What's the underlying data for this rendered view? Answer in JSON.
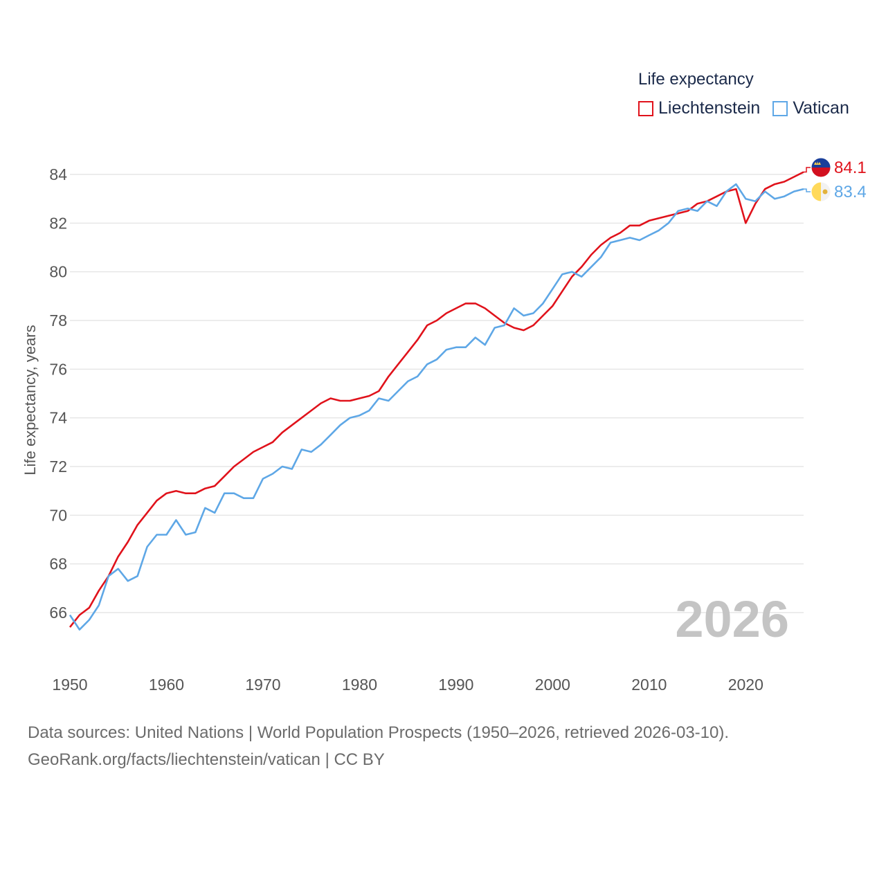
{
  "legend": {
    "title": "Life expectancy",
    "items": [
      {
        "label": "Liechtenstein",
        "color": "#e0121b"
      },
      {
        "label": "Vatican",
        "color": "#5ea7e6"
      }
    ]
  },
  "footer": {
    "line1": "Data sources: United Nations | World Population Prospects (1950–2026, retrieved 2026-03-10).",
    "line2": "GeoRank.org/facts/liechtenstein/vatican | CC BY"
  },
  "chart_data": {
    "type": "line",
    "title": "Life expectancy",
    "xlabel": "",
    "ylabel": "Life expectancy, years",
    "xlim": [
      1950,
      2026
    ],
    "ylim": [
      64.8,
      84.8
    ],
    "yticks": [
      66,
      68,
      70,
      72,
      74,
      76,
      78,
      80,
      82,
      84
    ],
    "xticks": [
      1950,
      1960,
      1970,
      1980,
      1990,
      2000,
      2010,
      2020
    ],
    "grid": true,
    "year_watermark": "2026",
    "x": [
      1950,
      1951,
      1952,
      1953,
      1954,
      1955,
      1956,
      1957,
      1958,
      1959,
      1960,
      1961,
      1962,
      1963,
      1964,
      1965,
      1966,
      1967,
      1968,
      1969,
      1970,
      1971,
      1972,
      1973,
      1974,
      1975,
      1976,
      1977,
      1978,
      1979,
      1980,
      1981,
      1982,
      1983,
      1984,
      1985,
      1986,
      1987,
      1988,
      1989,
      1990,
      1991,
      1992,
      1993,
      1994,
      1995,
      1996,
      1997,
      1998,
      1999,
      2000,
      2001,
      2002,
      2003,
      2004,
      2005,
      2006,
      2007,
      2008,
      2009,
      2010,
      2011,
      2012,
      2013,
      2014,
      2015,
      2016,
      2017,
      2018,
      2019,
      2020,
      2021,
      2022,
      2023,
      2024,
      2025,
      2026
    ],
    "series": [
      {
        "name": "Liechtenstein",
        "color": "#e0121b",
        "end_label": "84.1",
        "values": [
          65.4,
          65.9,
          66.2,
          66.9,
          67.5,
          68.3,
          68.9,
          69.6,
          70.1,
          70.6,
          70.9,
          71.0,
          70.9,
          70.9,
          71.1,
          71.2,
          71.6,
          72.0,
          72.3,
          72.6,
          72.8,
          73.0,
          73.4,
          73.7,
          74.0,
          74.3,
          74.6,
          74.8,
          74.7,
          74.7,
          74.8,
          74.9,
          75.1,
          75.7,
          76.2,
          76.7,
          77.2,
          77.8,
          78.0,
          78.3,
          78.5,
          78.7,
          78.7,
          78.5,
          78.2,
          77.9,
          77.7,
          77.6,
          77.8,
          78.2,
          78.6,
          79.2,
          79.8,
          80.2,
          80.7,
          81.1,
          81.4,
          81.6,
          81.9,
          81.9,
          82.1,
          82.2,
          82.3,
          82.4,
          82.5,
          82.8,
          82.9,
          83.1,
          83.3,
          83.4,
          82.0,
          82.8,
          83.4,
          83.6,
          83.7,
          83.9,
          84.1
        ]
      },
      {
        "name": "Vatican",
        "color": "#5ea7e6",
        "end_label": "83.4",
        "values": [
          65.9,
          65.3,
          65.7,
          66.3,
          67.5,
          67.8,
          67.3,
          67.5,
          68.7,
          69.2,
          69.2,
          69.8,
          69.2,
          69.3,
          70.3,
          70.1,
          70.9,
          70.9,
          70.7,
          70.7,
          71.5,
          71.7,
          72.0,
          71.9,
          72.7,
          72.6,
          72.9,
          73.3,
          73.7,
          74.0,
          74.1,
          74.3,
          74.8,
          74.7,
          75.1,
          75.5,
          75.7,
          76.2,
          76.4,
          76.8,
          76.9,
          76.9,
          77.3,
          77.0,
          77.7,
          77.8,
          78.5,
          78.2,
          78.3,
          78.7,
          79.3,
          79.9,
          80.0,
          79.8,
          80.2,
          80.6,
          81.2,
          81.3,
          81.4,
          81.3,
          81.5,
          81.7,
          82.0,
          82.5,
          82.6,
          82.5,
          82.9,
          82.7,
          83.3,
          83.6,
          83.0,
          82.9,
          83.3,
          83.0,
          83.1,
          83.3,
          83.4
        ]
      }
    ]
  }
}
